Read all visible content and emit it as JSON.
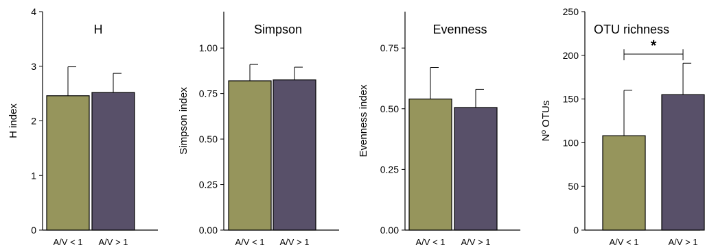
{
  "colors": {
    "low": "#96955c",
    "high": "#585069",
    "error": "#000000"
  },
  "chart_data": [
    {
      "type": "bar",
      "title": "H",
      "ylabel": "H index",
      "categories": [
        "A/V < 1",
        "A/V > 1"
      ],
      "values": [
        2.46,
        2.52
      ],
      "errors": [
        0.53,
        0.35
      ],
      "ylim": [
        0,
        4
      ],
      "yticks": [
        "0",
        "1",
        "2",
        "3",
        "4"
      ],
      "significance": ""
    },
    {
      "type": "bar",
      "title": "Simpson",
      "ylabel": "Simpson index",
      "categories": [
        "A/V < 1",
        "A/V > 1"
      ],
      "values": [
        0.82,
        0.825
      ],
      "errors": [
        0.09,
        0.07
      ],
      "ylim": [
        0,
        1.2
      ],
      "yticks": [
        "0.00",
        "0.25",
        "0.50",
        "0.75",
        "1.00"
      ],
      "significance": ""
    },
    {
      "type": "bar",
      "title": "Evenness",
      "ylabel": "Evenness index",
      "categories": [
        "A/V < 1",
        "A/V > 1"
      ],
      "values": [
        0.54,
        0.505
      ],
      "errors": [
        0.13,
        0.075
      ],
      "ylim": [
        0,
        0.9
      ],
      "yticks": [
        "0.00",
        "0.25",
        "0.50",
        "0.75"
      ],
      "significance": ""
    },
    {
      "type": "bar",
      "title": "OTU richness",
      "ylabel": "Nº OTUs",
      "categories": [
        "A/V < 1",
        "A/V > 1"
      ],
      "values": [
        108,
        155
      ],
      "errors": [
        52,
        36
      ],
      "ylim": [
        0,
        250
      ],
      "yticks": [
        "0",
        "50",
        "100",
        "150",
        "200",
        "250"
      ],
      "significance": "*"
    }
  ]
}
